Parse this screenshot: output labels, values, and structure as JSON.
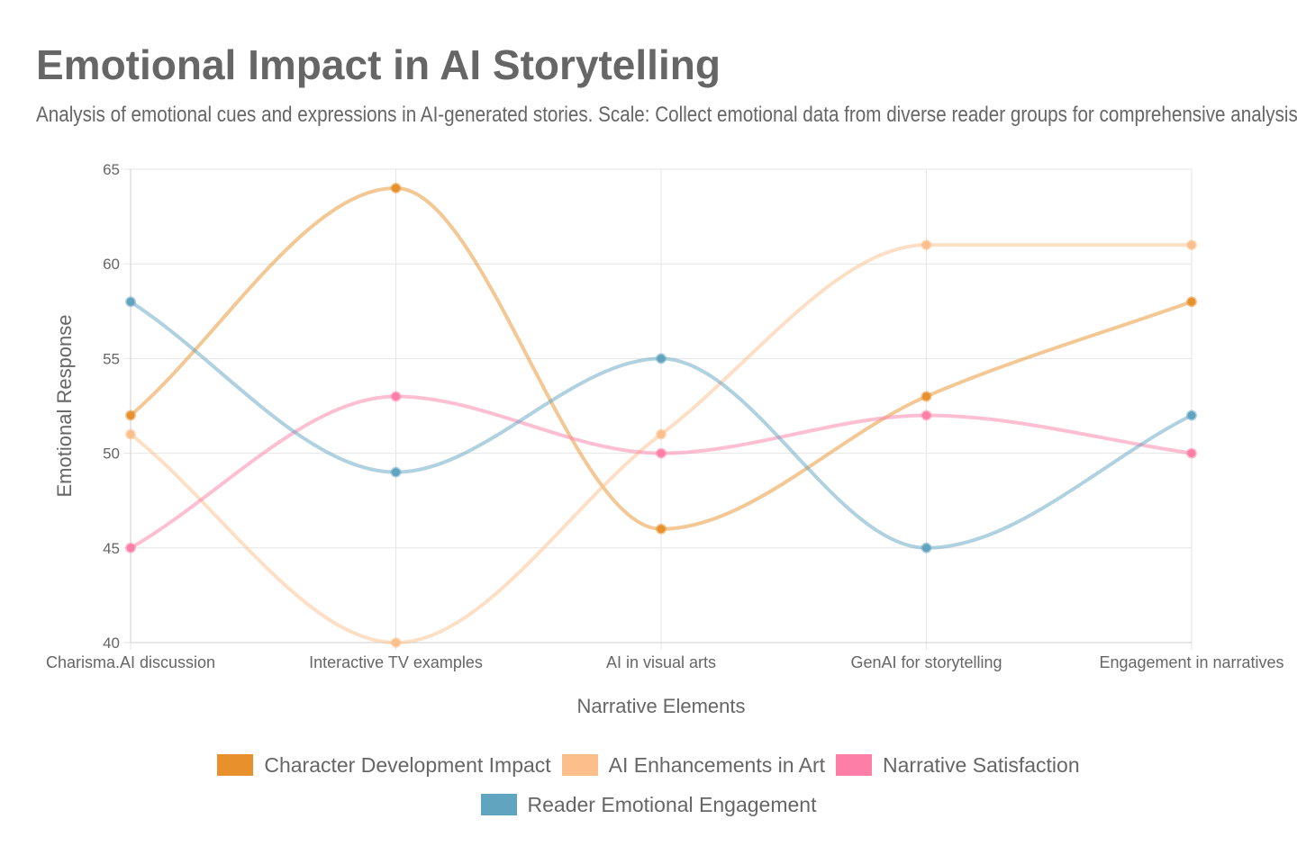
{
  "header": {
    "title": "Emotional Impact in AI Storytelling",
    "subtitle": "Analysis of emotional cues and expressions in AI-generated stories. Scale: Collect emotional data from diverse reader groups for comprehensive analysis."
  },
  "chart_data": {
    "type": "line",
    "xlabel": "Narrative Elements",
    "ylabel": "Emotional Response",
    "ylim": [
      40,
      65
    ],
    "yticks": [
      40,
      45,
      50,
      55,
      60,
      65
    ],
    "grid": true,
    "legend_position": "bottom",
    "curve": "smooth",
    "categories": [
      "Charisma.AI discussion",
      "Interactive TV examples",
      "AI in visual arts",
      "GenAI for storytelling",
      "Engagement in narratives"
    ],
    "series": [
      {
        "name": "Character Development Impact",
        "color": "#e8912c",
        "values": [
          52,
          64,
          46,
          53,
          58
        ]
      },
      {
        "name": "AI Enhancements in Art",
        "color": "#fcbf8c",
        "values": [
          51,
          40,
          51,
          61,
          61
        ]
      },
      {
        "name": "Narrative Satisfaction",
        "color": "#fd7fa8",
        "values": [
          45,
          53,
          50,
          52,
          50
        ]
      },
      {
        "name": "Reader Emotional Engagement",
        "color": "#61a4c0",
        "values": [
          58,
          49,
          55,
          45,
          52
        ]
      }
    ]
  }
}
